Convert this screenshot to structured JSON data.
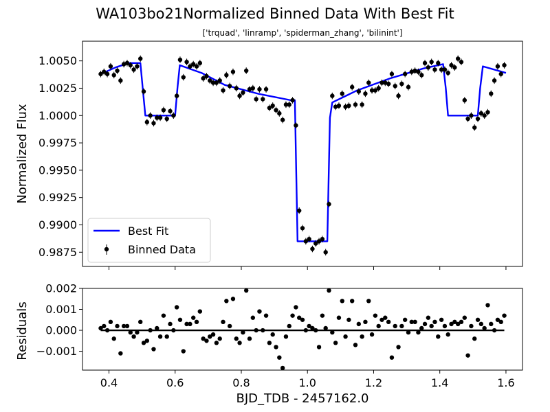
{
  "figure": {
    "title": "WA103bo21Normalized Binned Data With Best Fit",
    "subtitle": "['trquad', 'linramp', 'spiderman_zhang', 'bilinint']"
  },
  "chart_data": [
    {
      "type": "scatter",
      "panel": "main",
      "ylabel": "Normalized Flux",
      "xlim": [
        0.32,
        1.65
      ],
      "ylim": [
        0.9862,
        1.0068
      ],
      "x_ticks": [
        0.4,
        0.6,
        0.8,
        1.0,
        1.2,
        1.4,
        1.6
      ],
      "y_ticks": [
        0.9875,
        0.99,
        0.9925,
        0.995,
        0.9975,
        1.0,
        1.0025,
        1.005
      ],
      "y_tick_labels": [
        "0.9875",
        "0.9900",
        "0.9925",
        "0.9950",
        "0.9975",
        "1.0000",
        "1.0025",
        "1.0050"
      ],
      "legend": {
        "placement": "lower-left",
        "entries": [
          "Best Fit",
          "Binned Data"
        ]
      },
      "grid": false,
      "colors": {
        "fit": "#0000ff",
        "data": "#000000"
      },
      "series": [
        {
          "name": "Best Fit",
          "style": "line",
          "x": [
            0.375,
            0.42,
            0.46,
            0.495,
            0.502,
            0.51,
            0.6,
            0.607,
            0.614,
            0.68,
            0.75,
            0.85,
            0.95,
            0.962,
            0.97,
            1.06,
            1.068,
            1.075,
            1.15,
            1.25,
            1.35,
            1.41,
            1.418,
            1.425,
            1.515,
            1.522,
            1.53,
            1.6
          ],
          "y": [
            1.0038,
            1.0044,
            1.0048,
            1.0048,
            1.0025,
            1.0,
            1.0,
            1.0025,
            1.0046,
            1.0039,
            1.0028,
            1.002,
            1.0014,
            1.0014,
            0.9885,
            0.9885,
            0.9998,
            1.0012,
            1.0023,
            1.0034,
            1.0043,
            1.0047,
            1.0025,
            1.0,
            1.0,
            1.0025,
            1.0045,
            1.0039
          ]
        },
        {
          "name": "Binned Data",
          "style": "points",
          "yerr": 0.0003,
          "x": [
            0.375,
            0.385,
            0.395,
            0.405,
            0.415,
            0.425,
            0.435,
            0.445,
            0.455,
            0.465,
            0.475,
            0.485,
            0.495,
            0.505,
            0.515,
            0.525,
            0.535,
            0.545,
            0.555,
            0.565,
            0.575,
            0.585,
            0.595,
            0.605,
            0.615,
            0.625,
            0.635,
            0.645,
            0.655,
            0.665,
            0.675,
            0.685,
            0.695,
            0.705,
            0.715,
            0.725,
            0.735,
            0.745,
            0.755,
            0.765,
            0.775,
            0.785,
            0.795,
            0.805,
            0.815,
            0.825,
            0.835,
            0.845,
            0.855,
            0.865,
            0.875,
            0.885,
            0.895,
            0.905,
            0.915,
            0.925,
            0.935,
            0.945,
            0.955,
            0.965,
            0.975,
            0.985,
            0.995,
            1.005,
            1.015,
            1.025,
            1.035,
            1.045,
            1.055,
            1.065,
            1.075,
            1.085,
            1.095,
            1.105,
            1.115,
            1.125,
            1.135,
            1.145,
            1.155,
            1.165,
            1.175,
            1.185,
            1.195,
            1.205,
            1.215,
            1.225,
            1.235,
            1.245,
            1.255,
            1.265,
            1.275,
            1.285,
            1.295,
            1.305,
            1.315,
            1.325,
            1.335,
            1.345,
            1.355,
            1.365,
            1.375,
            1.385,
            1.395,
            1.405,
            1.415,
            1.425,
            1.435,
            1.445,
            1.455,
            1.465,
            1.475,
            1.485,
            1.495,
            1.505,
            1.515,
            1.525,
            1.535,
            1.545,
            1.555,
            1.565,
            1.575,
            1.585,
            1.595
          ],
          "y": [
            1.0038,
            1.004,
            1.0038,
            1.0045,
            1.0037,
            1.0041,
            1.0032,
            1.0047,
            1.0048,
            1.0046,
            1.0042,
            1.0045,
            1.0052,
            1.0022,
            0.9994,
            1.0,
            0.9993,
            0.9998,
            0.9998,
            1.0005,
            0.9997,
            1.0004,
            1.0,
            1.0018,
            1.0051,
            1.0035,
            1.0049,
            1.0045,
            1.0047,
            1.0045,
            1.0048,
            1.0034,
            1.0036,
            1.0032,
            1.003,
            1.003,
            1.0032,
            1.0023,
            1.0037,
            1.0027,
            1.004,
            1.0025,
            1.0018,
            1.0021,
            1.0041,
            1.0024,
            1.0025,
            1.0015,
            1.0024,
            1.0015,
            1.0024,
            1.0007,
            1.0009,
            1.0005,
            1.0002,
            0.9996,
            1.001,
            1.001,
            1.0014,
            0.9991,
            0.9913,
            0.9897,
            0.9885,
            0.9887,
            0.9878,
            0.9883,
            0.9885,
            0.9887,
            0.9875,
            0.9919,
            1.0018,
            1.0008,
            1.0009,
            1.002,
            1.0008,
            1.0009,
            1.0026,
            1.001,
            1.0022,
            1.001,
            1.002,
            1.003,
            1.0023,
            1.0023,
            1.0025,
            1.003,
            1.003,
            1.0029,
            1.0038,
            1.0027,
            1.0018,
            1.0029,
            1.0038,
            1.0026,
            1.004,
            1.0041,
            1.004,
            1.0037,
            1.0048,
            1.0044,
            1.0049,
            1.0042,
            1.0048,
            1.0042,
            1.0042,
            1.0039,
            1.0046,
            1.0044,
            1.0052,
            1.0049,
            1.0014,
            0.9997,
            1.0,
            0.9989,
            0.9997,
            1.0002,
            1.0,
            1.0003,
            1.002,
            1.0032,
            1.0045,
            1.0038,
            1.0046
          ]
        }
      ]
    },
    {
      "type": "scatter",
      "panel": "residuals",
      "xlabel": "BJD_TDB - 2457162.0",
      "ylabel": "Residuals",
      "xlim": [
        0.32,
        1.65
      ],
      "ylim": [
        -0.0019,
        0.002
      ],
      "x_ticks": [
        0.4,
        0.6,
        0.8,
        1.0,
        1.2,
        1.4,
        1.6
      ],
      "x_tick_labels": [
        "0.4",
        "0.6",
        "0.8",
        "1.0",
        "1.2",
        "1.4",
        "1.6"
      ],
      "y_ticks": [
        -0.001,
        0.0,
        0.001,
        0.002
      ],
      "y_tick_labels": [
        "−0.001",
        "0.000",
        "0.001",
        "0.002"
      ],
      "grid": false,
      "colors": {
        "zero_line": "#000000",
        "data": "#000000"
      },
      "series": [
        {
          "name": "Residuals",
          "style": "points",
          "x": [
            0.375,
            0.385,
            0.395,
            0.405,
            0.415,
            0.425,
            0.435,
            0.445,
            0.455,
            0.465,
            0.475,
            0.485,
            0.495,
            0.505,
            0.515,
            0.525,
            0.535,
            0.545,
            0.555,
            0.565,
            0.575,
            0.585,
            0.595,
            0.605,
            0.615,
            0.625,
            0.635,
            0.645,
            0.655,
            0.665,
            0.675,
            0.685,
            0.695,
            0.705,
            0.715,
            0.725,
            0.735,
            0.745,
            0.755,
            0.765,
            0.775,
            0.785,
            0.795,
            0.805,
            0.815,
            0.825,
            0.835,
            0.845,
            0.855,
            0.865,
            0.875,
            0.885,
            0.895,
            0.905,
            0.915,
            0.925,
            0.935,
            0.945,
            0.955,
            0.965,
            0.975,
            0.985,
            0.995,
            1.005,
            1.015,
            1.025,
            1.035,
            1.045,
            1.055,
            1.065,
            1.075,
            1.085,
            1.095,
            1.105,
            1.115,
            1.125,
            1.135,
            1.145,
            1.155,
            1.165,
            1.175,
            1.185,
            1.195,
            1.205,
            1.215,
            1.225,
            1.235,
            1.245,
            1.255,
            1.265,
            1.275,
            1.285,
            1.295,
            1.305,
            1.315,
            1.325,
            1.335,
            1.345,
            1.355,
            1.365,
            1.375,
            1.385,
            1.395,
            1.405,
            1.415,
            1.425,
            1.435,
            1.445,
            1.455,
            1.465,
            1.475,
            1.485,
            1.495,
            1.505,
            1.515,
            1.525,
            1.535,
            1.545,
            1.555,
            1.565,
            1.575,
            1.585,
            1.595
          ],
          "y": [
            0.0001,
            0.0002,
            0.0,
            0.0004,
            -0.0004,
            0.0002,
            -0.0011,
            0.0002,
            0.0002,
            -0.0001,
            -0.0003,
            -0.0001,
            0.0004,
            -0.0006,
            -0.0005,
            0.0,
            -0.0009,
            0.0001,
            -0.0003,
            0.0007,
            -0.0003,
            0.0003,
            0.0,
            0.0011,
            0.0005,
            -0.001,
            0.0003,
            0.0003,
            0.0006,
            0.0004,
            0.0009,
            -0.0004,
            -0.0005,
            -0.0003,
            -0.0002,
            -0.0006,
            -0.0004,
            0.0004,
            0.0014,
            0.0002,
            0.0015,
            -0.0004,
            -0.0006,
            -0.0001,
            0.0019,
            -0.0004,
            0.0006,
            0.0,
            0.0009,
            0.0,
            0.0007,
            -0.0006,
            -0.0002,
            -0.0008,
            -0.0013,
            -0.0018,
            -0.0003,
            0.0002,
            0.0007,
            0.0011,
            0.0006,
            0.0005,
            0.0,
            0.0002,
            0.0001,
            0.0,
            -0.0008,
            0.0007,
            0.0001,
            0.0019,
            -0.0001,
            -0.0006,
            0.0006,
            0.0014,
            -0.0003,
            0.0005,
            0.0014,
            -0.0007,
            0.0003,
            -0.0003,
            0.0004,
            0.0014,
            -0.0002,
            0.0007,
            0.0002,
            0.0005,
            0.0006,
            0.0004,
            -0.0013,
            0.0002,
            -0.0008,
            0.0002,
            0.0005,
            -0.0001,
            0.0004,
            0.0004,
            -0.0001,
            0.0001,
            0.0003,
            0.0006,
            0.0002,
            0.0004,
            -0.0003,
            0.0005,
            0.0002,
            -0.0002,
            0.0003,
            0.0004,
            0.0003,
            0.0004,
            0.0006,
            -0.0012,
            0.0002,
            -0.0004,
            0.0005,
            0.0003,
            0.0001,
            0.0012,
            0.0003,
            0.0,
            0.0005,
            0.0004,
            0.0007
          ]
        }
      ]
    }
  ]
}
